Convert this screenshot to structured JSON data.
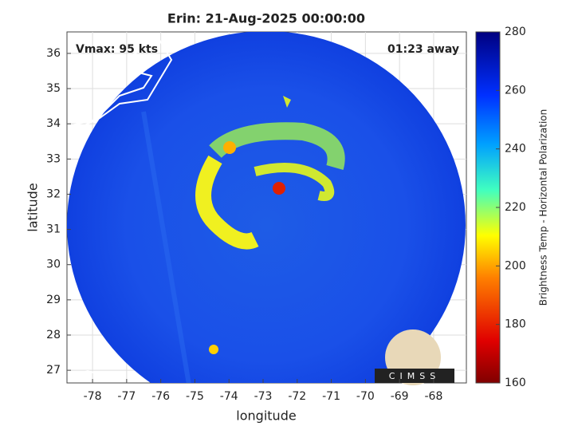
{
  "chart_data": {
    "type": "image",
    "title": "Erin: 21-Aug-2025 00:00:00",
    "xlabel": "longitude",
    "ylabel": "latitude",
    "xlim": [
      -78.75,
      -67.04
    ],
    "xticks": [
      -78,
      -77,
      -76,
      -75,
      -74,
      -73,
      -72,
      -71,
      -70,
      -69,
      -68
    ],
    "ylim": [
      26.64,
      36.61
    ],
    "yticks": [
      27,
      28,
      29,
      30,
      31,
      32,
      33,
      34,
      35,
      36
    ],
    "grid": true,
    "annotations": [
      "Vmax: 95 kts",
      "01:23 away"
    ],
    "colorbar": {
      "label": "Brightness Temp - Horizontal Polarization",
      "lim": [
        160,
        280
      ],
      "ticks": [
        160,
        180,
        200,
        220,
        240,
        260,
        280
      ]
    },
    "logo": "CIMSS"
  }
}
